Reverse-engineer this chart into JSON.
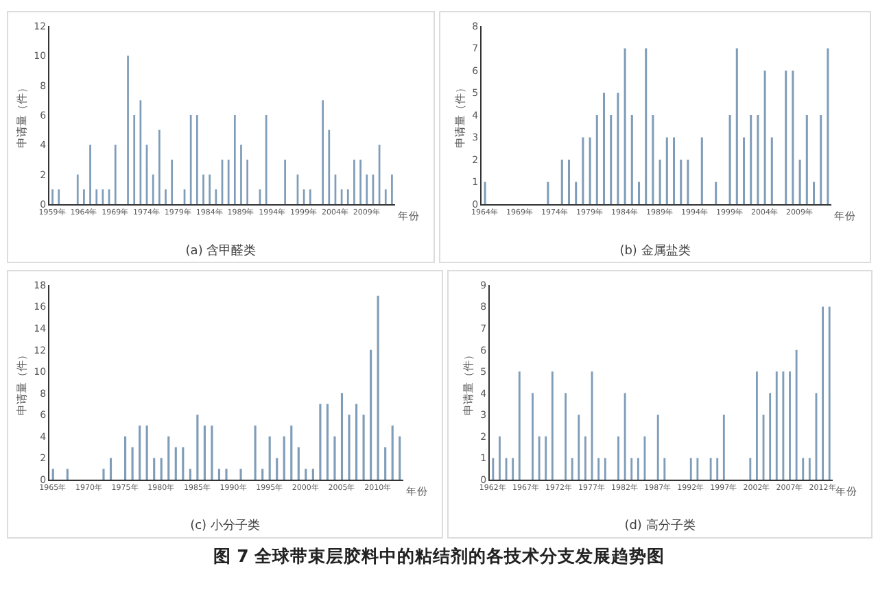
{
  "chart_data": [
    {
      "type": "bar",
      "title": "(a) 含甲醛类",
      "xlabel": "年份",
      "ylabel": "申请量（件）",
      "color": "#7f9db9",
      "ylim": [
        0,
        12
      ],
      "yticks": [
        0,
        2,
        4,
        6,
        8,
        10,
        12
      ],
      "categories": [
        "1959年",
        null,
        null,
        null,
        null,
        "1964年",
        null,
        null,
        null,
        null,
        "1969年",
        null,
        null,
        null,
        null,
        "1974年",
        null,
        null,
        null,
        null,
        "1979年",
        null,
        null,
        null,
        null,
        "1984年",
        null,
        null,
        null,
        null,
        "1989年",
        null,
        null,
        null,
        null,
        "1994年",
        null,
        null,
        null,
        null,
        "1999年",
        null,
        null,
        null,
        null,
        "2004年",
        null,
        null,
        null,
        null,
        "2009年",
        null,
        null,
        null,
        null
      ],
      "values": [
        1,
        1,
        0,
        0,
        2,
        1,
        4,
        1,
        1,
        1,
        4,
        0,
        10,
        6,
        7,
        4,
        2,
        5,
        1,
        3,
        0,
        1,
        6,
        6,
        2,
        2,
        1,
        3,
        3,
        6,
        4,
        3,
        0,
        1,
        6,
        0,
        0,
        3,
        0,
        2,
        1,
        1,
        0,
        7,
        5,
        2,
        1,
        1,
        3,
        3,
        2,
        2,
        4,
        1,
        2
      ]
    },
    {
      "type": "bar",
      "title": "(b) 金属盐类",
      "xlabel": "年份",
      "ylabel": "申请量（件）",
      "color": "#7f9db9",
      "ylim": [
        0,
        8
      ],
      "yticks": [
        0,
        1,
        2,
        3,
        4,
        5,
        6,
        7,
        8
      ],
      "categories": [
        "1964年",
        null,
        null,
        null,
        null,
        "1969年",
        null,
        null,
        null,
        null,
        "1974年",
        null,
        null,
        null,
        null,
        "1979年",
        null,
        null,
        null,
        null,
        "1984年",
        null,
        null,
        null,
        null,
        "1989年",
        null,
        null,
        null,
        null,
        "1994年",
        null,
        null,
        null,
        null,
        "1999年",
        null,
        null,
        null,
        null,
        "2004年",
        null,
        null,
        null,
        null,
        "2009年",
        null,
        null,
        null,
        null
      ],
      "values": [
        1,
        0,
        0,
        0,
        0,
        0,
        0,
        0,
        0,
        1,
        0,
        2,
        2,
        1,
        3,
        3,
        4,
        5,
        4,
        5,
        7,
        4,
        1,
        7,
        4,
        2,
        3,
        3,
        2,
        2,
        0,
        3,
        0,
        1,
        0,
        4,
        7,
        3,
        4,
        4,
        6,
        3,
        0,
        6,
        6,
        2,
        4,
        1,
        4,
        7
      ]
    },
    {
      "type": "bar",
      "title": "(c) 小分子类",
      "xlabel": "年份",
      "ylabel": "申请量（件）",
      "color": "#7f9db9",
      "ylim": [
        0,
        18
      ],
      "yticks": [
        0,
        2,
        4,
        6,
        8,
        10,
        12,
        14,
        16,
        18
      ],
      "categories": [
        "1965年",
        null,
        null,
        null,
        null,
        "1970年",
        null,
        null,
        null,
        null,
        "1975年",
        null,
        null,
        null,
        null,
        "1980年",
        null,
        null,
        null,
        null,
        "1985年",
        null,
        null,
        null,
        null,
        "1990年",
        null,
        null,
        null,
        null,
        "1995年",
        null,
        null,
        null,
        null,
        "2000年",
        null,
        null,
        null,
        null,
        "2005年",
        null,
        null,
        null,
        null,
        "2010年",
        null,
        null,
        null
      ],
      "values": [
        1,
        0,
        1,
        0,
        0,
        0,
        0,
        1,
        2,
        0,
        4,
        3,
        5,
        5,
        2,
        2,
        4,
        3,
        3,
        1,
        6,
        5,
        5,
        1,
        1,
        0,
        1,
        0,
        5,
        1,
        4,
        2,
        4,
        5,
        3,
        1,
        1,
        7,
        7,
        4,
        8,
        6,
        7,
        6,
        12,
        17,
        3,
        5,
        4
      ]
    },
    {
      "type": "bar",
      "title": "(d) 高分子类",
      "xlabel": "年份",
      "ylabel": "申请量（件）",
      "color": "#7f9db9",
      "ylim": [
        0,
        9
      ],
      "yticks": [
        0,
        1,
        2,
        3,
        4,
        5,
        6,
        7,
        8,
        9
      ],
      "categories": [
        "1962年",
        null,
        null,
        null,
        null,
        "1967年",
        null,
        null,
        null,
        null,
        "1972年",
        null,
        null,
        null,
        null,
        "1977年",
        null,
        null,
        null,
        null,
        "1982年",
        null,
        null,
        null,
        null,
        "1987年",
        null,
        null,
        null,
        null,
        "1992年",
        null,
        null,
        null,
        null,
        "1997年",
        null,
        null,
        null,
        null,
        "2002年",
        null,
        null,
        null,
        null,
        "2007年",
        null,
        null,
        null,
        null,
        "2012年",
        null
      ],
      "values": [
        1,
        2,
        1,
        1,
        5,
        0,
        4,
        2,
        2,
        5,
        0,
        4,
        1,
        3,
        2,
        5,
        1,
        1,
        0,
        2,
        4,
        1,
        1,
        2,
        0,
        3,
        1,
        0,
        0,
        0,
        1,
        1,
        0,
        1,
        1,
        3,
        0,
        0,
        0,
        1,
        5,
        3,
        4,
        5,
        5,
        5,
        6,
        1,
        1,
        4,
        8,
        8
      ],
      "annotations": [
        "图 7 全球带束层胶料中的粘结剂的各技术分支发展趋势图"
      ]
    }
  ]
}
